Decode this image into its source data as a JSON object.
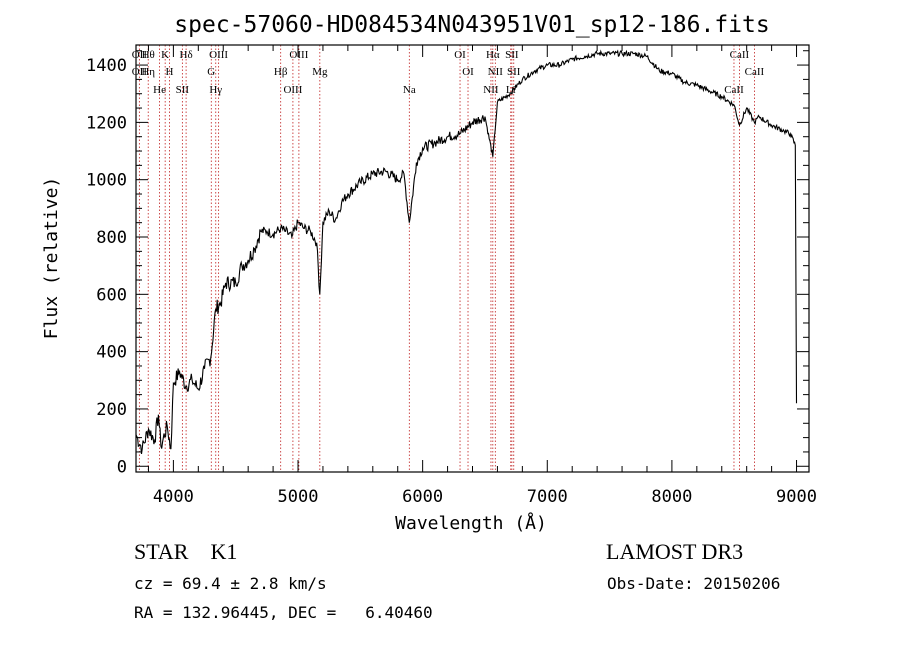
{
  "chart_data": {
    "type": "line",
    "title": "spec-57060-HD084534N043951V01_sp12-186.fits",
    "xlabel": "Wavelength (Å)",
    "ylabel": "Flux (relative)",
    "xlim": [
      3700,
      9100
    ],
    "ylim": [
      -20,
      1470
    ],
    "xticks": [
      4000,
      5000,
      6000,
      7000,
      8000,
      9000
    ],
    "yticks": [
      0,
      200,
      400,
      600,
      800,
      1000,
      1200,
      1400
    ],
    "grid": false,
    "series": [
      {
        "x": [
          3700,
          3750,
          3800,
          3850,
          3880,
          3900,
          3950,
          3980,
          4000,
          4050,
          4100,
          4150,
          4200,
          4250,
          4300,
          4340,
          4380,
          4420,
          4500,
          4550,
          4600,
          4650,
          4700,
          4750,
          4800,
          4861,
          4900,
          4950,
          5000,
          5050,
          5100,
          5150,
          5175,
          5200,
          5250,
          5300,
          5350,
          5400,
          5500,
          5600,
          5700,
          5800,
          5850,
          5893,
          5950,
          6000,
          6100,
          6200,
          6300,
          6400,
          6500,
          6563,
          6600,
          6700,
          6800,
          6900,
          7000,
          7100,
          7200,
          7300,
          7400,
          7500,
          7600,
          7700,
          7800,
          7900,
          8000,
          8100,
          8200,
          8300,
          8400,
          8500,
          8542,
          8600,
          8662,
          8700,
          8800,
          8900,
          8950,
          8990,
          9000
        ],
        "y": [
          110,
          60,
          130,
          90,
          180,
          70,
          140,
          60,
          290,
          330,
          280,
          300,
          270,
          340,
          380,
          550,
          570,
          640,
          640,
          700,
          720,
          760,
          820,
          820,
          810,
          830,
          820,
          800,
          850,
          830,
          820,
          780,
          600,
          850,
          890,
          860,
          920,
          950,
          990,
          1020,
          1030,
          1000,
          1020,
          850,
          1060,
          1110,
          1130,
          1150,
          1160,
          1200,
          1220,
          1080,
          1270,
          1300,
          1350,
          1380,
          1400,
          1400,
          1420,
          1430,
          1440,
          1440,
          1440,
          1440,
          1430,
          1380,
          1370,
          1340,
          1330,
          1310,
          1290,
          1260,
          1190,
          1250,
          1200,
          1220,
          1190,
          1170,
          1160,
          1120,
          220
        ]
      }
    ],
    "lines": [
      {
        "x": 3727,
        "labels": [
          "OII",
          "OII"
        ]
      },
      {
        "x": 3798,
        "labels": [
          "Hθ",
          "Hη"
        ]
      },
      {
        "x": 3889,
        "labels": [
          "He"
        ]
      },
      {
        "x": 3934,
        "labels": [
          "K"
        ]
      },
      {
        "x": 3969,
        "labels": [
          "H"
        ]
      },
      {
        "x": 4072,
        "labels": [
          "SII"
        ]
      },
      {
        "x": 4102,
        "labels": [
          "Hδ"
        ]
      },
      {
        "x": 4304,
        "labels": [
          "G"
        ]
      },
      {
        "x": 4340,
        "labels": [
          "Hγ"
        ]
      },
      {
        "x": 4363,
        "labels": [
          "OIII"
        ]
      },
      {
        "x": 4861,
        "labels": [
          "Hβ"
        ]
      },
      {
        "x": 4959,
        "labels": [
          "OIII"
        ]
      },
      {
        "x": 5007,
        "labels": [
          "OIII"
        ]
      },
      {
        "x": 5175,
        "labels": [
          "Mg"
        ]
      },
      {
        "x": 5893,
        "labels": [
          "Na"
        ]
      },
      {
        "x": 6300,
        "labels": [
          "OI"
        ]
      },
      {
        "x": 6364,
        "labels": [
          "OI"
        ]
      },
      {
        "x": 6548,
        "labels": [
          "NII"
        ]
      },
      {
        "x": 6563,
        "labels": [
          "Hα"
        ]
      },
      {
        "x": 6583,
        "labels": [
          "NII"
        ]
      },
      {
        "x": 6707,
        "labels": [
          "Li"
        ]
      },
      {
        "x": 6716,
        "labels": [
          "SII"
        ]
      },
      {
        "x": 6731,
        "labels": [
          "SII"
        ]
      },
      {
        "x": 8498,
        "labels": [
          "CaII"
        ]
      },
      {
        "x": 8542,
        "labels": [
          "CaII"
        ]
      },
      {
        "x": 8662,
        "labels": [
          "CaII"
        ]
      }
    ]
  },
  "info": {
    "star_line": "STAR    K1",
    "survey": "LAMOST DR3",
    "cz_line": "cz = 69.4 ± 2.8 km/s",
    "obs_line": "Obs-Date: 20150206",
    "coords": "RA = 132.96445, DEC =   6.40460"
  },
  "colors": {
    "line_marker": "#c02020",
    "spectrum": "#000000"
  }
}
